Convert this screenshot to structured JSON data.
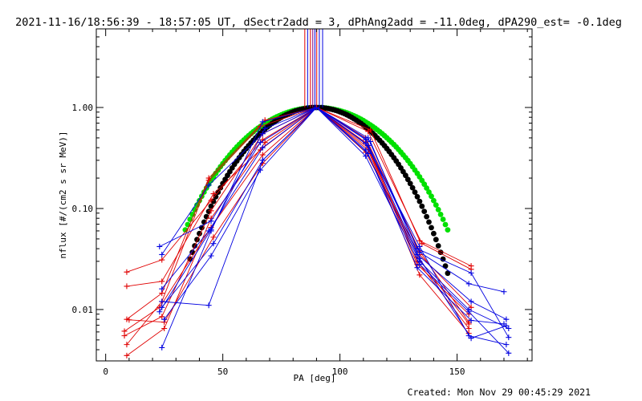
{
  "header": {
    "title": "2021-11-16/18:56:39 - 18:57:05 UT, dSectr2add = 3, dPhAng2add = -11.0deg, dPA290_est= -0.1deg"
  },
  "footer": {
    "created": "Created: Mon Nov 29 00:45:29 2021"
  },
  "colors": {
    "red": "#e00000",
    "blue": "#0000e0",
    "purple": "#800080",
    "green": "#00e000",
    "black": "#000000"
  },
  "chart_data": {
    "type": "line",
    "title": "",
    "xlabel": "PA [deg]",
    "ylabel": "nflux [#/(cm2 s sr MeV)]",
    "xlim": [
      -4,
      182
    ],
    "ylim": [
      0.0031,
      6.0
    ],
    "y_scale": "log",
    "x_ticks": [
      0,
      50,
      100,
      150
    ],
    "x_tick_labels": [
      "0",
      "50",
      "100",
      "150"
    ],
    "y_ticks": [
      0.01,
      0.1,
      1.0
    ],
    "y_tick_labels": [
      "0.01",
      "0.10",
      "1.00"
    ],
    "vertical_markers": [
      {
        "x": 85.0,
        "color": "red"
      },
      {
        "x": 86.2,
        "color": "blue"
      },
      {
        "x": 87.4,
        "color": "red"
      },
      {
        "x": 88.4,
        "color": "purple"
      },
      {
        "x": 89.3,
        "color": "blue"
      },
      {
        "x": 90.1,
        "color": "red"
      },
      {
        "x": 91.2,
        "color": "blue"
      },
      {
        "x": 92.6,
        "color": "blue"
      }
    ],
    "series": [
      {
        "color": "red",
        "points": [
          [
            9,
            0.0035
          ],
          [
            25,
            0.0065
          ],
          [
            45,
            0.08
          ],
          [
            68,
            0.45
          ],
          [
            90,
            1.0
          ],
          [
            112,
            0.42
          ],
          [
            133,
            0.03
          ],
          [
            155,
            0.0065
          ]
        ]
      },
      {
        "color": "red",
        "points": [
          [
            9,
            0.0045
          ],
          [
            24,
            0.012
          ],
          [
            44,
            0.19
          ],
          [
            66,
            0.65
          ],
          [
            90,
            1.0
          ],
          [
            111,
            0.5
          ],
          [
            134,
            0.038
          ],
          [
            155,
            0.0075
          ]
        ]
      },
      {
        "color": "red",
        "points": [
          [
            8,
            0.0055
          ],
          [
            24,
            0.0085
          ],
          [
            45,
            0.095
          ],
          [
            67,
            0.55
          ],
          [
            90,
            1.0
          ],
          [
            112,
            0.58
          ],
          [
            135,
            0.045
          ],
          [
            156,
            0.025
          ]
        ]
      },
      {
        "color": "red",
        "points": [
          [
            9,
            0.008
          ],
          [
            24,
            0.0145
          ],
          [
            44,
            0.2
          ],
          [
            68,
            0.75
          ],
          [
            90,
            1.0
          ],
          [
            113,
            0.6
          ],
          [
            134,
            0.048
          ],
          [
            156,
            0.027
          ]
        ]
      },
      {
        "color": "red",
        "points": [
          [
            9,
            0.017
          ],
          [
            24,
            0.019
          ],
          [
            46,
            0.14
          ],
          [
            66,
            0.38
          ],
          [
            90,
            1.0
          ],
          [
            111,
            0.45
          ],
          [
            133,
            0.028
          ],
          [
            155,
            0.009
          ]
        ]
      },
      {
        "color": "red",
        "points": [
          [
            9,
            0.0235
          ],
          [
            24,
            0.031
          ],
          [
            45,
            0.12
          ],
          [
            67,
            0.48
          ],
          [
            90,
            1.0
          ],
          [
            112,
            0.38
          ],
          [
            134,
            0.022
          ],
          [
            155,
            0.0058
          ]
        ]
      },
      {
        "color": "red",
        "points": [
          [
            8,
            0.0061
          ],
          [
            23,
            0.0105
          ],
          [
            45,
            0.065
          ],
          [
            67,
            0.34
          ],
          [
            90,
            1.0
          ],
          [
            111,
            0.36
          ],
          [
            134,
            0.035
          ],
          [
            156,
            0.0105
          ]
        ]
      },
      {
        "color": "red",
        "points": [
          [
            10,
            0.0079
          ],
          [
            25,
            0.0075
          ],
          [
            46,
            0.052
          ],
          [
            67,
            0.28
          ],
          [
            90,
            1.0
          ],
          [
            112,
            0.4
          ],
          [
            133,
            0.033
          ],
          [
            155,
            0.0072
          ]
        ]
      },
      {
        "color": "blue",
        "points": [
          [
            24,
            0.0042
          ],
          [
            45,
            0.06
          ],
          [
            67,
            0.72
          ],
          [
            90,
            1.0
          ],
          [
            111,
            0.44
          ],
          [
            134,
            0.042
          ],
          [
            155,
            0.0055
          ],
          [
            171,
            0.0045
          ]
        ]
      },
      {
        "color": "blue",
        "points": [
          [
            24,
            0.035
          ],
          [
            44,
            0.17
          ],
          [
            67,
            0.55
          ],
          [
            90,
            1.0
          ],
          [
            112,
            0.5
          ],
          [
            133,
            0.04
          ],
          [
            156,
            0.023
          ],
          [
            172,
            0.0053
          ]
        ]
      },
      {
        "color": "blue",
        "points": [
          [
            23,
            0.042
          ],
          [
            45,
            0.075
          ],
          [
            66,
            0.45
          ],
          [
            90,
            1.0
          ],
          [
            111,
            0.48
          ],
          [
            134,
            0.037
          ],
          [
            155,
            0.018
          ],
          [
            170,
            0.015
          ]
        ]
      },
      {
        "color": "blue",
        "points": [
          [
            24,
            0.016
          ],
          [
            44,
            0.06
          ],
          [
            67,
            0.4
          ],
          [
            90,
            1.0
          ],
          [
            112,
            0.42
          ],
          [
            133,
            0.035
          ],
          [
            156,
            0.012
          ],
          [
            171,
            0.008
          ]
        ]
      },
      {
        "color": "blue",
        "points": [
          [
            24,
            0.0105
          ],
          [
            46,
            0.045
          ],
          [
            67,
            0.3
          ],
          [
            90,
            1.0
          ],
          [
            111,
            0.38
          ],
          [
            134,
            0.03
          ],
          [
            155,
            0.01
          ],
          [
            172,
            0.0065
          ]
        ]
      },
      {
        "color": "blue",
        "points": [
          [
            25,
            0.008
          ],
          [
            45,
            0.034
          ],
          [
            66,
            0.24
          ],
          [
            90,
            1.0
          ],
          [
            112,
            0.35
          ],
          [
            133,
            0.026
          ],
          [
            156,
            0.0078
          ],
          [
            170,
            0.0072
          ]
        ]
      },
      {
        "color": "blue",
        "points": [
          [
            24,
            0.012
          ],
          [
            44,
            0.011
          ],
          [
            67,
            0.3
          ],
          [
            90,
            1.0
          ],
          [
            111,
            0.33
          ],
          [
            134,
            0.028
          ],
          [
            155,
            0.0095
          ],
          [
            172,
            0.0037
          ]
        ]
      },
      {
        "color": "blue",
        "points": [
          [
            23,
            0.0095
          ],
          [
            45,
            0.062
          ],
          [
            68,
            0.62
          ],
          [
            90,
            1.0
          ],
          [
            113,
            0.46
          ],
          [
            134,
            0.032
          ],
          [
            156,
            0.0052
          ],
          [
            171,
            0.0069
          ]
        ]
      }
    ],
    "model_curves": [
      {
        "color": "green",
        "shape": "sine_power",
        "exponent": 4.8,
        "x_range": [
          34,
          146
        ]
      },
      {
        "color": "black",
        "shape": "sine_power",
        "exponent": 6.5,
        "x_range": [
          36,
          146
        ]
      }
    ]
  }
}
